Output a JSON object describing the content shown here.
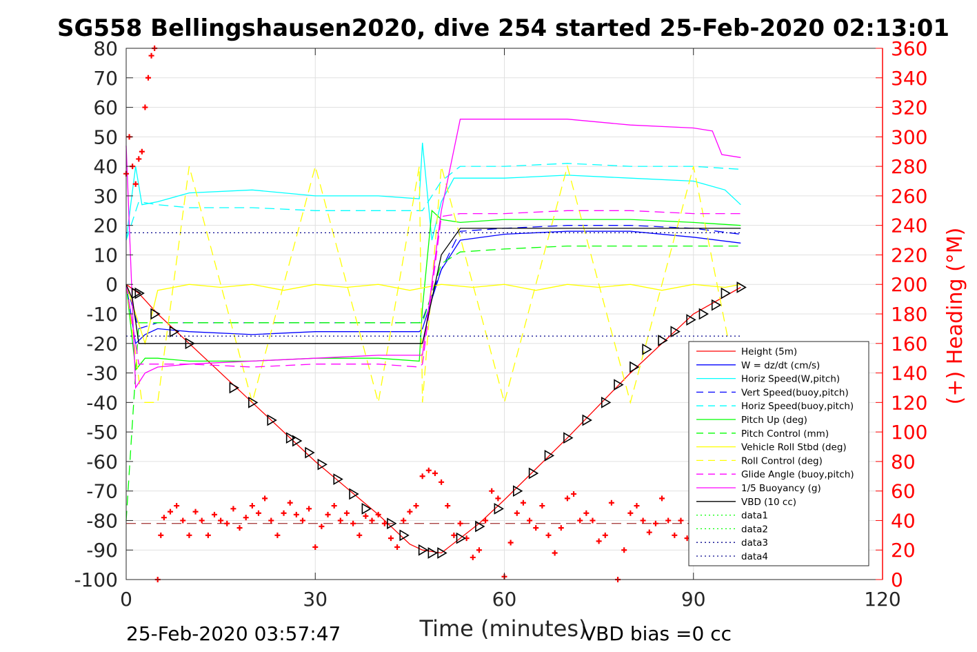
{
  "chart_data": {
    "type": "line",
    "title": "SG558 Bellingshausen2020, dive 254 started 25-Feb-2020 02:13:01",
    "xlabel": "Time (minutes)",
    "ylabel": "",
    "ylabel_right": "(+) Heading (°M)",
    "xlim": [
      0,
      120
    ],
    "ylim": [
      -100,
      80
    ],
    "ylim_right": [
      0,
      360
    ],
    "xticks": [
      "0",
      "30",
      "60",
      "90",
      "120"
    ],
    "yticks": [
      "80",
      "70",
      "60",
      "50",
      "40",
      "30",
      "20",
      "10",
      "0",
      "-10",
      "-20",
      "-30",
      "-40",
      "-50",
      "-60",
      "-70",
      "-80",
      "-90",
      "-100"
    ],
    "yticks_right": [
      "360",
      "340",
      "320",
      "300",
      "280",
      "260",
      "240",
      "220",
      "200",
      "180",
      "160",
      "140",
      "120",
      "100",
      "80",
      "60",
      "40",
      "20",
      "0"
    ],
    "grid": true,
    "legend_position": "bottom-right",
    "footer_left": "25-Feb-2020 03:57:47",
    "footer_right": "VBD bias =0 cc",
    "series": [
      {
        "name": "Height (5m)",
        "color": "#ff0000",
        "style": "solid",
        "x": [
          0,
          2,
          5,
          10,
          20,
          30,
          40,
          45,
          47,
          50,
          53,
          56,
          60,
          70,
          80,
          90,
          97.5
        ],
        "y": [
          0,
          -3,
          -10,
          -20,
          -40,
          -60,
          -78,
          -88,
          -90,
          -91,
          -86,
          -81,
          -73,
          -52,
          -30,
          -10,
          -1
        ]
      },
      {
        "name": "W = dz/dt (cm/s)",
        "color": "#0000ff",
        "style": "solid",
        "x": [
          0,
          1.5,
          3,
          5,
          10,
          20,
          30,
          40,
          46.5,
          47,
          50,
          53,
          60,
          70,
          80,
          90,
          97.5
        ],
        "y": [
          0,
          -20,
          -17,
          -15,
          -16,
          -17,
          -16,
          -16,
          -16,
          -15,
          5,
          15,
          17,
          18,
          18,
          16,
          14
        ]
      },
      {
        "name": "Horiz Speed(W,pitch)",
        "color": "#00ffff",
        "style": "solid",
        "x": [
          0,
          1.5,
          2.5,
          5,
          10,
          20,
          30,
          40,
          46.5,
          47,
          48.5,
          50,
          52,
          60,
          70,
          80,
          90,
          95,
          97.5
        ],
        "y": [
          15,
          40,
          27,
          28,
          31,
          32,
          30,
          30,
          29,
          48,
          15,
          28,
          36,
          36,
          37,
          36,
          35,
          32,
          27
        ]
      },
      {
        "name": "Vert Speed(buoy,pitch)",
        "color": "#0000ff",
        "style": "dashed",
        "x": [
          0,
          2,
          5,
          10,
          20,
          30,
          40,
          46.5,
          47,
          50,
          53,
          60,
          70,
          80,
          90,
          97.5
        ],
        "y": [
          0,
          -15,
          -13,
          -13,
          -13,
          -13,
          -13,
          -13,
          -12,
          5,
          18,
          19,
          20,
          20,
          19,
          17
        ]
      },
      {
        "name": "Horiz Speed(buoy,pitch)",
        "color": "#00ffff",
        "style": "dashed",
        "x": [
          0,
          2,
          5,
          10,
          20,
          30,
          40,
          46.5,
          47,
          50,
          53,
          60,
          70,
          80,
          90,
          97.5
        ],
        "y": [
          15,
          28,
          27,
          26,
          26,
          25,
          25,
          25,
          25,
          35,
          40,
          40,
          41,
          40,
          40,
          39
        ]
      },
      {
        "name": "Pitch Up (deg)",
        "color": "#00ff00",
        "style": "solid",
        "x": [
          0,
          1.5,
          3,
          5,
          10,
          20,
          30,
          40,
          46.5,
          47,
          48.5,
          50,
          53,
          60,
          70,
          80,
          90,
          97.5
        ],
        "y": [
          0,
          -29,
          -25,
          -25,
          -26,
          -26,
          -25,
          -25,
          -26,
          -8,
          25,
          22,
          21,
          22,
          22,
          22,
          21,
          20
        ]
      },
      {
        "name": "Pitch Control (mm)",
        "color": "#00ff00",
        "style": "dashed",
        "x": [
          0,
          2,
          5,
          46.5,
          47,
          50,
          53,
          60,
          70,
          80,
          90,
          97.5
        ],
        "y": [
          -80,
          -13,
          -13,
          -13,
          -13,
          7,
          11,
          12,
          13,
          13,
          13,
          13
        ]
      },
      {
        "name": "Vehicle Roll Stbd (deg)",
        "color": "#ffff00",
        "style": "solid",
        "x": [
          0,
          3,
          5,
          10,
          15,
          20,
          25,
          30,
          35,
          40,
          45,
          50,
          55,
          60,
          65,
          70,
          75,
          80,
          85,
          90,
          95,
          97.5
        ],
        "y": [
          0,
          -20,
          -2,
          0,
          -1,
          0,
          -2,
          0,
          -1,
          0,
          -2,
          0,
          -1,
          0,
          -2,
          0,
          -1,
          0,
          -2,
          0,
          -1,
          0
        ]
      },
      {
        "name": "Roll Control (deg)",
        "color": "#ffff00",
        "style": "dashed",
        "x": [
          0,
          2.5,
          5,
          10,
          20,
          30,
          40,
          46.5,
          47,
          50,
          60,
          70,
          80,
          90,
          97.5
        ],
        "y": [
          0,
          -40,
          -40,
          40,
          -40,
          40,
          -40,
          40,
          -40,
          40,
          -40,
          40,
          -40,
          40,
          -40
        ]
      },
      {
        "name": "Glide Angle (buoy,pitch)",
        "color": "#ff00ff",
        "style": "dashed",
        "x": [
          0,
          2,
          5,
          10,
          20,
          30,
          40,
          46.5,
          47,
          50,
          53,
          60,
          70,
          80,
          90,
          97.5
        ],
        "y": [
          0,
          -27,
          -27,
          -27,
          -28,
          -27,
          -27,
          -28,
          -27,
          23,
          24,
          24,
          25,
          25,
          24,
          24
        ]
      },
      {
        "name": "1/5 Buoyancy (g)",
        "color": "#ff00ff",
        "style": "solid",
        "x": [
          0,
          1.5,
          3,
          5,
          10,
          20,
          30,
          40,
          46.5,
          47,
          50,
          53,
          60,
          70,
          80,
          90,
          93,
          94.5,
          97.5
        ],
        "y": [
          47,
          -35,
          -30,
          -28,
          -27,
          -26,
          -25,
          -24,
          -24,
          -24,
          25,
          56,
          56,
          56,
          54,
          53,
          52,
          44,
          43
        ]
      },
      {
        "name": "VBD (10 cc)",
        "color": "#000000",
        "style": "solid",
        "x": [
          0,
          1,
          2,
          5,
          10,
          20,
          30,
          40,
          46.5,
          47,
          50,
          53,
          60,
          70,
          80,
          90,
          97.5
        ],
        "y": [
          0,
          -5,
          -20,
          -20,
          -20,
          -20,
          -20,
          -20,
          -20,
          -20,
          10,
          19,
          19,
          19,
          19,
          19,
          19
        ]
      },
      {
        "name": "data1",
        "color": "#00ff00",
        "style": "dotted",
        "x": [],
        "y": []
      },
      {
        "name": "data2",
        "color": "#00ff00",
        "style": "dotted",
        "x": [],
        "y": []
      },
      {
        "name": "data3",
        "color": "#00008b",
        "style": "dotted",
        "x": [
          0,
          97.5
        ],
        "y": [
          17.5,
          17.5
        ]
      },
      {
        "name": "data4",
        "color": "#00008b",
        "style": "dotted",
        "x": [
          0,
          97.5
        ],
        "y": [
          -17.5,
          -17.5
        ]
      }
    ],
    "heading_series": {
      "axis": "right",
      "color": "#ff0000",
      "marker": "+",
      "x": [
        0,
        0.5,
        1,
        1.5,
        2,
        2.5,
        3,
        3.5,
        4,
        4.5,
        5,
        5.5,
        6,
        7,
        8,
        9,
        10,
        11,
        12,
        13,
        14,
        15,
        16,
        17,
        18,
        19,
        20,
        21,
        22,
        23,
        24,
        25,
        26,
        27,
        28,
        29,
        30,
        31,
        32,
        33,
        34,
        35,
        36,
        37,
        38,
        39,
        40,
        41,
        42,
        43,
        44,
        45,
        46,
        47,
        48,
        49,
        50,
        51,
        52,
        53,
        54,
        55,
        56,
        57,
        58,
        59,
        60,
        61,
        62,
        63,
        64,
        65,
        66,
        67,
        68,
        69,
        70,
        71,
        72,
        73,
        74,
        75,
        76,
        77,
        78,
        79,
        80,
        81,
        82,
        83,
        84,
        85,
        86,
        87,
        88,
        89,
        90
      ],
      "y": [
        275,
        300,
        280,
        268,
        285,
        290,
        320,
        340,
        355,
        360,
        0,
        30,
        42,
        46,
        50,
        40,
        30,
        46,
        40,
        30,
        44,
        40,
        38,
        48,
        35,
        42,
        50,
        45,
        55,
        40,
        30,
        45,
        52,
        44,
        40,
        48,
        22,
        36,
        44,
        50,
        40,
        45,
        38,
        30,
        43,
        40,
        44,
        38,
        28,
        22,
        40,
        46,
        50,
        70,
        74,
        72,
        66,
        50,
        30,
        38,
        28,
        15,
        20,
        40,
        60,
        55,
        2,
        25,
        45,
        52,
        40,
        35,
        50,
        30,
        18,
        35,
        55,
        58,
        40,
        45,
        40,
        26,
        30,
        52,
        0,
        20,
        45,
        50,
        40,
        32,
        38,
        55,
        40,
        30,
        40,
        28,
        25
      ]
    },
    "depth_markers": {
      "marker": "triangle",
      "color": "#000000",
      "x": [
        1.5,
        2,
        4.5,
        7.5,
        10,
        17,
        20,
        23,
        26,
        27,
        29,
        31,
        33.5,
        36,
        38,
        42,
        44,
        47,
        48.5,
        50,
        53,
        56,
        59,
        62,
        64.5,
        67,
        70,
        73,
        76,
        78,
        80.5,
        82.5,
        85,
        87,
        89.5,
        91.5,
        93.5,
        95,
        97.5
      ],
      "y": [
        -3,
        -3,
        -10,
        -16,
        -20,
        -35,
        -40,
        -46,
        -52,
        -53,
        -57,
        -61,
        -66,
        -71,
        -76,
        -81,
        -85,
        -90,
        -91,
        -91,
        -86,
        -82,
        -76,
        -70,
        -64,
        -58,
        -52,
        -46,
        -40,
        -34,
        -28,
        -22,
        -19,
        -16,
        -12,
        -10,
        -7,
        -3,
        -1
      ]
    },
    "reference_lines": [
      {
        "color": "#8b0000",
        "style": "dashed",
        "y": -81,
        "x": [
          0,
          97.5
        ]
      }
    ]
  }
}
